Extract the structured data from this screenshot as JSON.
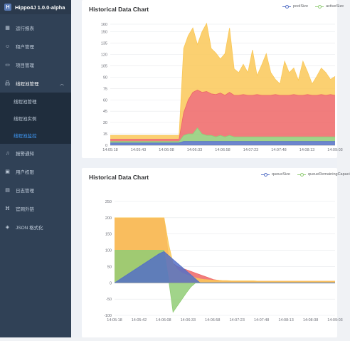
{
  "app": {
    "title": "Hippo4J 1.0.0-alpha",
    "logo_letter": "H"
  },
  "sidebar": {
    "items": [
      {
        "label": "运行报表",
        "icon": "dashboard-icon"
      },
      {
        "label": "租户管理",
        "icon": "user-icon"
      },
      {
        "label": "项目管理",
        "icon": "folder-icon"
      },
      {
        "label": "线程池管理",
        "icon": "tree-icon",
        "open": true,
        "children": [
          {
            "label": "线程池管理",
            "active": false
          },
          {
            "label": "线程池实例",
            "active": false
          },
          {
            "label": "线程池监控",
            "active": true
          }
        ]
      },
      {
        "label": "报警通知",
        "icon": "bell-icon"
      },
      {
        "label": "用户权限",
        "icon": "lock-icon"
      },
      {
        "label": "日志管理",
        "icon": "log-icon"
      },
      {
        "label": "官网外链",
        "icon": "link-icon"
      },
      {
        "label": "JSON 格式化",
        "icon": "code-icon"
      }
    ]
  },
  "colors": {
    "blue": "#5470c6",
    "green": "#91cc75",
    "yellow": "#fac858",
    "orange": "#ee6666",
    "accent": "#409eff"
  },
  "chart_data": [
    {
      "type": "area",
      "title": "Historical Data Chart",
      "legend": [
        "poolSize",
        "activeSize"
      ],
      "legend_position": "top-right",
      "x_ticks": [
        "14:05:18",
        "14:05:43",
        "14:06:08",
        "14:06:33",
        "14:06:58",
        "14:07:23",
        "14:07:48",
        "14:08:13",
        "14:09:03"
      ],
      "y_ticks": [
        "0",
        "15",
        "30",
        "45",
        "60",
        "75",
        "90",
        "105",
        "120",
        "135",
        "150",
        "160"
      ],
      "ylim": [
        0,
        160
      ],
      "grid": true,
      "stacked": true,
      "series": [
        {
          "name": "poolSize",
          "color": "#5470c6",
          "values": [
            3,
            3,
            3,
            3,
            3,
            3,
            3,
            3,
            3,
            3,
            3,
            3,
            3,
            3,
            3,
            3,
            5,
            5,
            5,
            5,
            5,
            5,
            5,
            5,
            5,
            5,
            5,
            5,
            5,
            5,
            5,
            5,
            5,
            5,
            5,
            5,
            5,
            5,
            5,
            5,
            5,
            5,
            5,
            5,
            5,
            5,
            5,
            5,
            5,
            5
          ]
        },
        {
          "name": "activeSize",
          "color": "#91cc75",
          "values": [
            2,
            2,
            2,
            2,
            2,
            2,
            2,
            2,
            2,
            2,
            2,
            2,
            2,
            2,
            2,
            2,
            8,
            10,
            10,
            18,
            10,
            8,
            8,
            6,
            8,
            6,
            8,
            6,
            6,
            6,
            6,
            6,
            6,
            6,
            6,
            6,
            6,
            6,
            6,
            6,
            6,
            6,
            6,
            6,
            6,
            6,
            6,
            6,
            6,
            6
          ]
        },
        {
          "name": "",
          "color": "#ee6666",
          "values": [
            3,
            3,
            3,
            3,
            3,
            3,
            3,
            3,
            3,
            3,
            3,
            3,
            3,
            3,
            3,
            3,
            30,
            45,
            55,
            50,
            55,
            58,
            55,
            56,
            56,
            55,
            57,
            55,
            55,
            56,
            55,
            55,
            56,
            55,
            55,
            55,
            56,
            55,
            55,
            55,
            56,
            55,
            55,
            56,
            55,
            55,
            56,
            55,
            56,
            55
          ]
        },
        {
          "name": "",
          "color": "#fac858",
          "values": [
            5,
            5,
            5,
            5,
            5,
            5,
            5,
            5,
            5,
            5,
            5,
            5,
            5,
            5,
            5,
            5,
            85,
            85,
            85,
            60,
            80,
            90,
            60,
            55,
            45,
            55,
            85,
            35,
            30,
            40,
            30,
            60,
            25,
            40,
            55,
            30,
            20,
            15,
            45,
            30,
            35,
            20,
            45,
            30,
            15,
            25,
            35,
            30,
            20,
            25
          ]
        }
      ]
    },
    {
      "type": "area",
      "title": "Historical Data Chart",
      "legend": [
        "queueSize",
        "queueRemainingCapaci"
      ],
      "legend_position": "top-right",
      "x_ticks": [
        "14:05:18",
        "14:05:42",
        "14:06:08",
        "14:06:33",
        "14:06:58",
        "14:07:23",
        "14:07:48",
        "14:08:13",
        "14:08:38",
        "14:09:03"
      ],
      "y_ticks": [
        "-100",
        "-50",
        "0",
        "50",
        "100",
        "150",
        "200",
        "250"
      ],
      "ylim": [
        -100,
        250
      ],
      "grid": true,
      "stacked": false,
      "series": [
        {
          "name": "queueSize",
          "color": "#5470c6",
          "values": [
            0,
            9,
            18,
            27,
            36,
            45,
            54,
            63,
            72,
            81,
            90,
            96,
            84,
            72,
            60,
            48,
            36,
            24,
            12,
            0,
            0,
            0,
            0,
            0,
            0,
            0,
            0,
            0,
            0,
            0,
            0,
            0,
            0,
            0,
            0,
            0,
            0,
            0,
            0,
            0,
            0,
            0,
            0,
            0,
            0,
            0,
            0,
            0,
            0,
            0
          ]
        },
        {
          "name": "queueRemainingCapaci",
          "color": "#91cc75",
          "values": [
            100,
            100,
            100,
            100,
            100,
            100,
            100,
            100,
            100,
            100,
            100,
            100,
            12,
            -90,
            -70,
            -50,
            -30,
            -12,
            0,
            0,
            0,
            0,
            0,
            0,
            0,
            0,
            0,
            0,
            0,
            0,
            0,
            0,
            0,
            0,
            0,
            0,
            0,
            0,
            0,
            0,
            0,
            0,
            0,
            0,
            0,
            0,
            0,
            0,
            0,
            0
          ]
        },
        {
          "name": "",
          "color": "#fac858",
          "values": [
            200,
            200,
            200,
            200,
            200,
            200,
            200,
            200,
            200,
            200,
            200,
            200,
            120,
            60,
            40,
            30,
            25,
            20,
            15,
            12,
            10,
            9,
            8,
            8,
            7,
            7,
            6,
            6,
            6,
            6,
            6,
            6,
            5,
            5,
            5,
            5,
            5,
            5,
            5,
            5,
            5,
            5,
            5,
            5,
            5,
            5,
            5,
            5,
            5,
            5
          ]
        },
        {
          "name": "",
          "color": "#ee6666",
          "values": [
            200,
            200,
            200,
            200,
            200,
            200,
            200,
            200,
            200,
            200,
            200,
            200,
            80,
            60,
            50,
            45,
            40,
            35,
            30,
            25,
            20,
            15,
            10,
            8,
            6,
            5,
            5,
            5,
            5,
            5,
            5,
            5,
            5,
            5,
            5,
            5,
            5,
            5,
            5,
            5,
            5,
            5,
            5,
            5,
            5,
            5,
            5,
            5,
            5,
            5
          ]
        }
      ]
    }
  ]
}
